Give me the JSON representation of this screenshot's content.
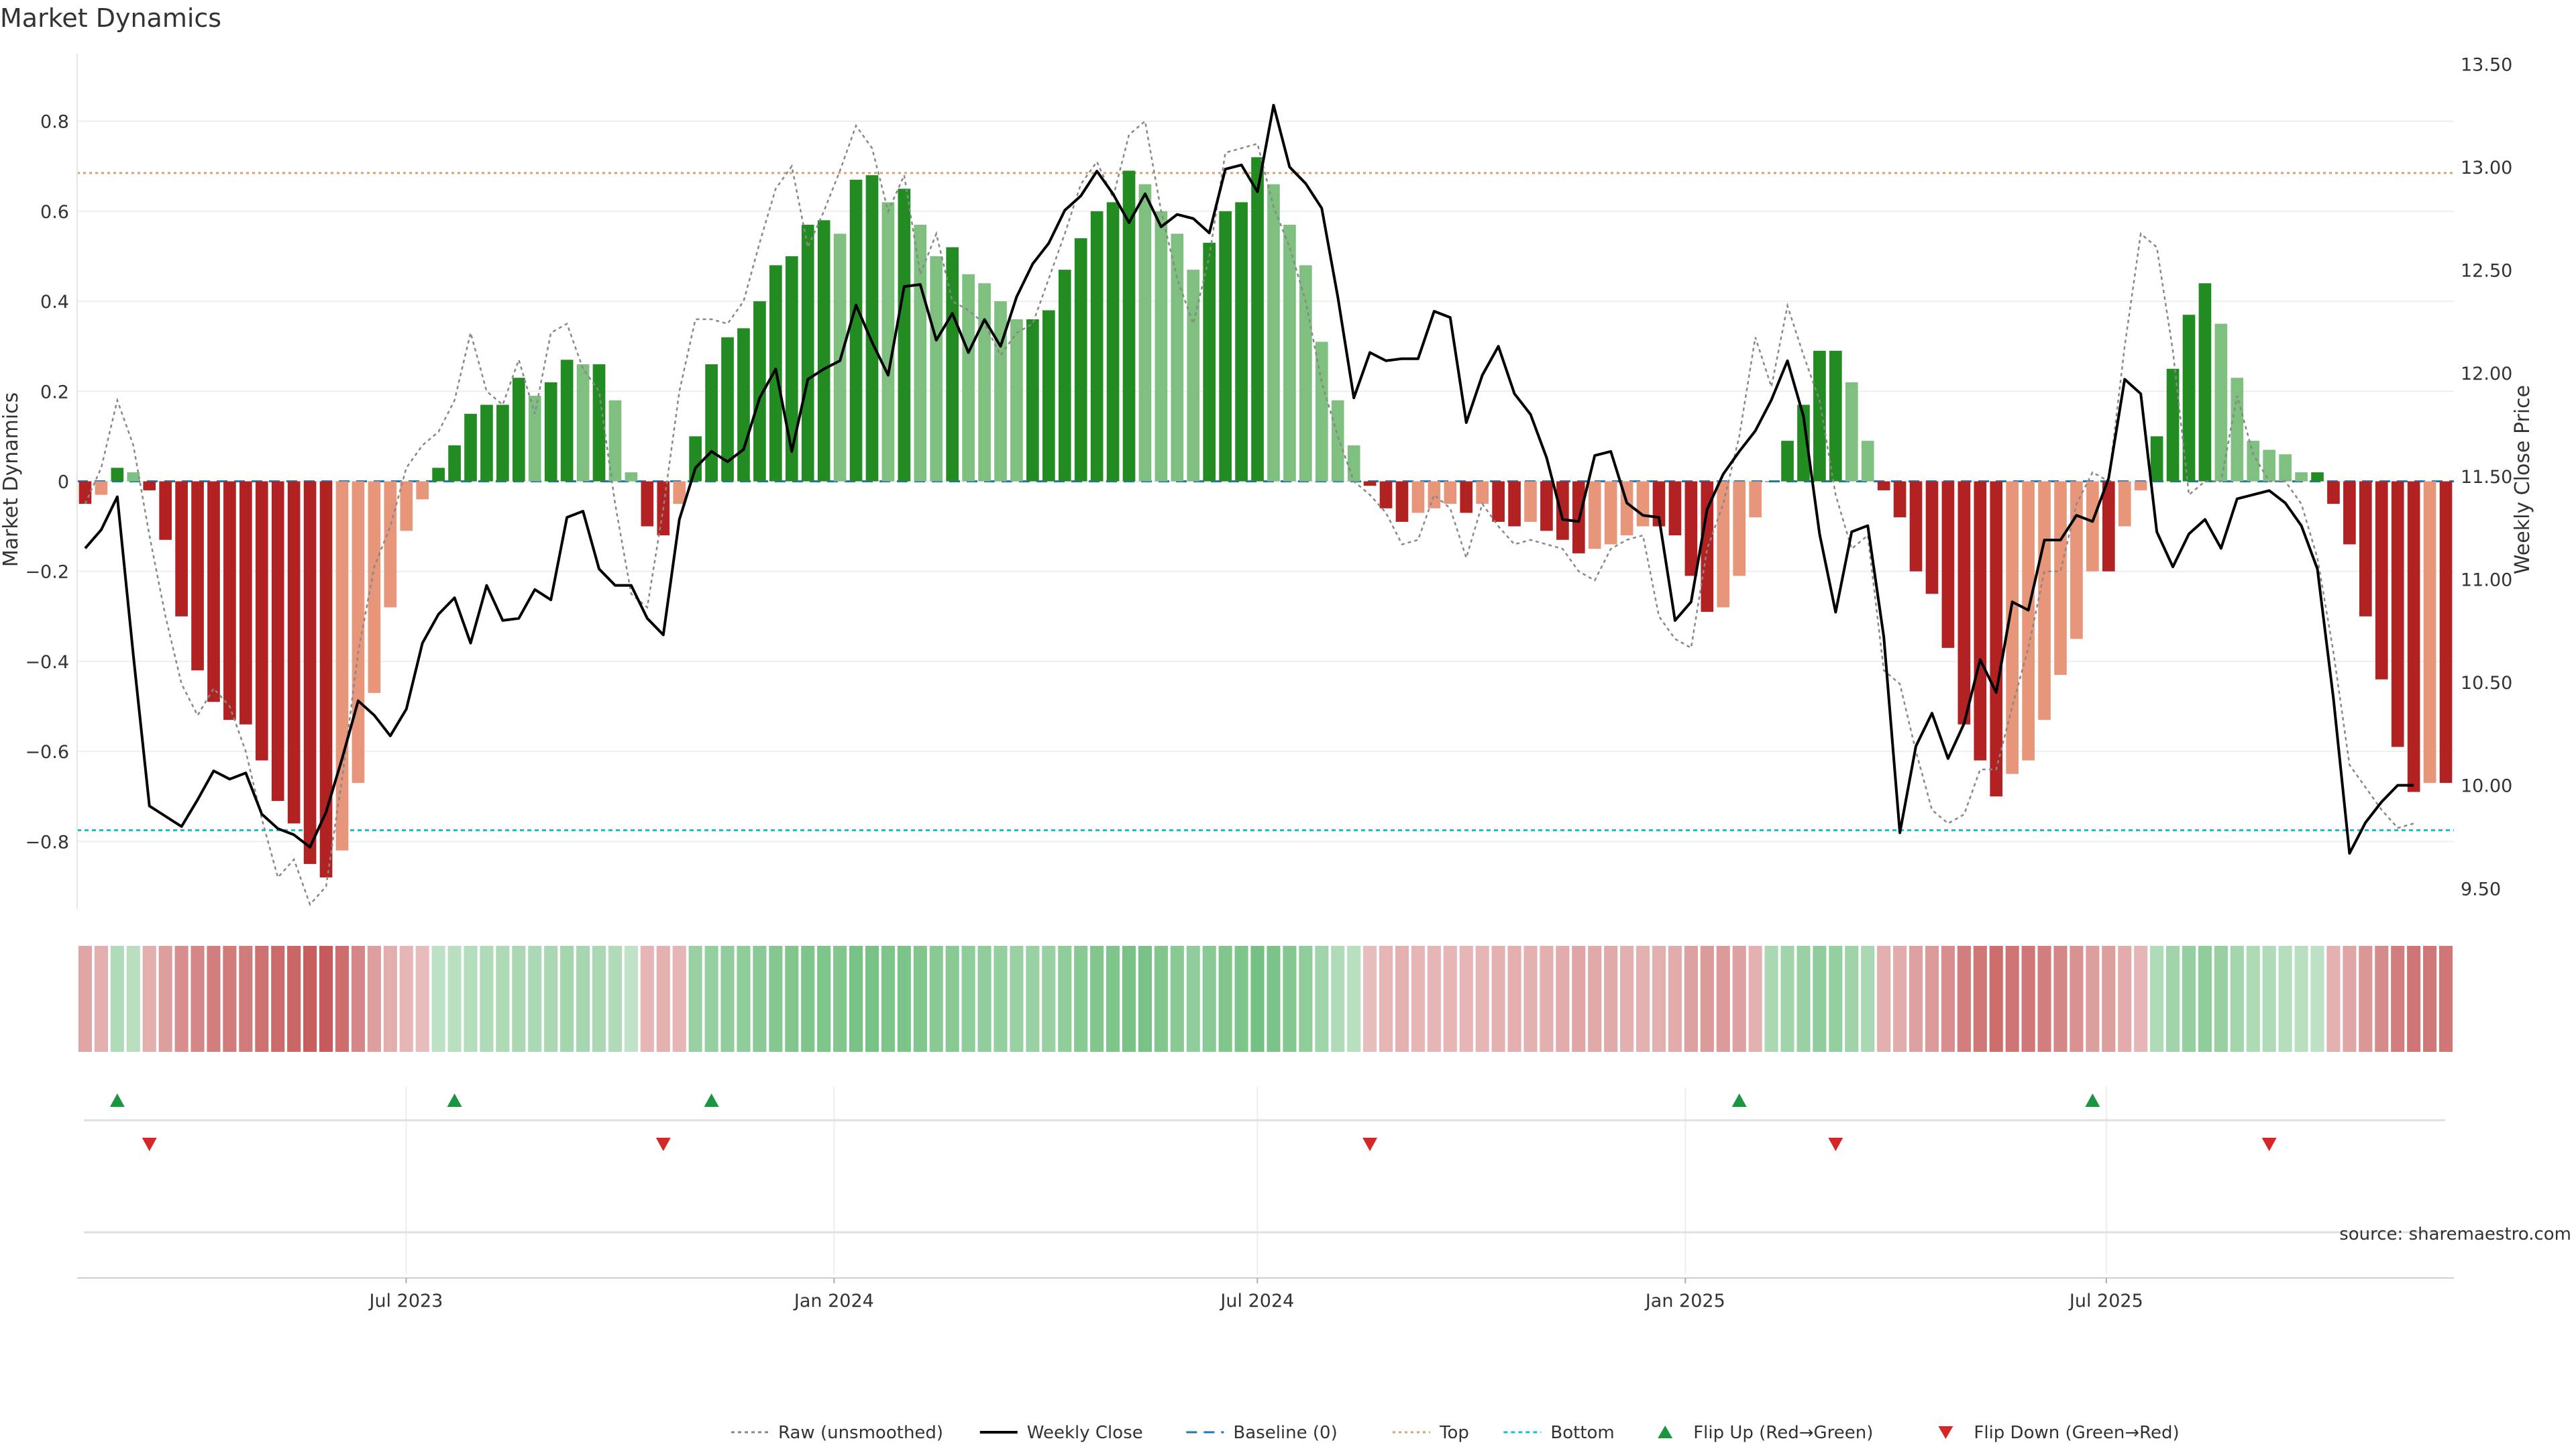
{
  "chart_data": {
    "type": "bar",
    "title": "Market Dynamics",
    "ylabel": "Market Dynamics",
    "y2label": "Weekly Close Price",
    "source": "source: sharemaestro.com",
    "ylim": [
      -0.95,
      0.95
    ],
    "y2lim": [
      9.4,
      13.55
    ],
    "yticks": [
      "0.8",
      "0.6",
      "0.4",
      "0.2",
      "0",
      "−0.2",
      "−0.4",
      "−0.6",
      "−0.8"
    ],
    "yticks_values": [
      0.8,
      0.6,
      0.4,
      0.2,
      0,
      -0.2,
      -0.4,
      -0.6,
      -0.8
    ],
    "y2ticks": [
      "13.50",
      "13.00",
      "12.50",
      "12.00",
      "11.50",
      "11.00",
      "10.50",
      "10.00",
      "9.50"
    ],
    "y2ticks_values": [
      13.5,
      13.0,
      12.5,
      12.0,
      11.5,
      11.0,
      10.5,
      10.0,
      9.5
    ],
    "x_start": "2023-02-13",
    "x_end": "2025-11-24",
    "xticks": [
      {
        "label": "Jul 2023",
        "date": "2023-07-01"
      },
      {
        "label": "Jan 2024",
        "date": "2024-01-01"
      },
      {
        "label": "Jul 2024",
        "date": "2024-07-01"
      },
      {
        "label": "Jan 2025",
        "date": "2025-01-01"
      },
      {
        "label": "Jul 2025",
        "date": "2025-07-01"
      }
    ],
    "top_level": 0.685,
    "bottom_level": -0.775,
    "colors": {
      "up_strong": "#228b22",
      "up_weak": "#7fbf7f",
      "down_strong": "#b22222",
      "down_weak": "#e8967a",
      "close": "#000000",
      "raw": "#888888",
      "baseline": "#1f77b4",
      "top": "#d4a373",
      "bottom": "#17becf",
      "flip_up": "#1a9641",
      "flip_down": "#d62728"
    },
    "series": [
      {
        "name": "Market Dynamics",
        "values": [
          -0.05,
          -0.03,
          0.03,
          0.02,
          -0.02,
          -0.13,
          -0.3,
          -0.42,
          -0.49,
          -0.53,
          -0.54,
          -0.62,
          -0.71,
          -0.76,
          -0.85,
          -0.88,
          -0.82,
          -0.67,
          -0.47,
          -0.28,
          -0.11,
          -0.04,
          0.03,
          0.08,
          0.15,
          0.17,
          0.17,
          0.23,
          0.19,
          0.22,
          0.27,
          0.26,
          0.26,
          0.18,
          0.02,
          -0.1,
          -0.12,
          -0.05,
          0.1,
          0.26,
          0.32,
          0.34,
          0.4,
          0.48,
          0.5,
          0.57,
          0.58,
          0.55,
          0.67,
          0.68,
          0.62,
          0.65,
          0.57,
          0.5,
          0.52,
          0.46,
          0.44,
          0.4,
          0.36,
          0.36,
          0.38,
          0.47,
          0.54,
          0.6,
          0.62,
          0.69,
          0.66,
          0.6,
          0.55,
          0.47,
          0.53,
          0.6,
          0.62,
          0.72,
          0.66,
          0.57,
          0.48,
          0.31,
          0.18,
          0.08,
          -0.01,
          -0.06,
          -0.09,
          -0.07,
          -0.06,
          -0.05,
          -0.07,
          -0.05,
          -0.09,
          -0.1,
          -0.09,
          -0.11,
          -0.13,
          -0.16,
          -0.15,
          -0.14,
          -0.12,
          -0.1,
          -0.1,
          -0.12,
          -0.21,
          -0.29,
          -0.28,
          -0.21,
          -0.08,
          0.0,
          0.09,
          0.17,
          0.29,
          0.29,
          0.22,
          0.09,
          -0.02,
          -0.08,
          -0.2,
          -0.25,
          -0.37,
          -0.54,
          -0.62,
          -0.7,
          -0.65,
          -0.62,
          -0.53,
          -0.43,
          -0.35,
          -0.2,
          -0.2,
          -0.1,
          -0.02,
          0.1,
          0.25,
          0.37,
          0.44,
          0.35,
          0.23,
          0.09,
          0.07,
          0.06,
          0.02,
          0.02,
          -0.05,
          -0.14,
          -0.3,
          -0.44,
          -0.59,
          -0.69,
          -0.67,
          -0.67
        ]
      },
      {
        "name": "Raw (unsmoothed)",
        "values": [
          -0.05,
          0.03,
          0.18,
          0.08,
          -0.12,
          -0.3,
          -0.45,
          -0.52,
          -0.46,
          -0.5,
          -0.6,
          -0.75,
          -0.88,
          -0.84,
          -0.94,
          -0.9,
          -0.66,
          -0.38,
          -0.19,
          -0.1,
          0.03,
          0.08,
          0.11,
          0.18,
          0.33,
          0.2,
          0.17,
          0.27,
          0.15,
          0.33,
          0.35,
          0.25,
          0.2,
          -0.05,
          -0.25,
          -0.28,
          -0.06,
          0.2,
          0.36,
          0.36,
          0.35,
          0.4,
          0.53,
          0.65,
          0.7,
          0.52,
          0.6,
          0.69,
          0.79,
          0.74,
          0.6,
          0.68,
          0.46,
          0.55,
          0.4,
          0.38,
          0.35,
          0.28,
          0.33,
          0.35,
          0.45,
          0.55,
          0.66,
          0.71,
          0.63,
          0.77,
          0.8,
          0.6,
          0.45,
          0.35,
          0.5,
          0.73,
          0.74,
          0.75,
          0.61,
          0.52,
          0.4,
          0.22,
          0.1,
          0.0,
          -0.03,
          -0.07,
          -0.14,
          -0.13,
          -0.03,
          -0.06,
          -0.17,
          -0.05,
          -0.1,
          -0.14,
          -0.13,
          -0.14,
          -0.15,
          -0.2,
          -0.22,
          -0.15,
          -0.13,
          -0.12,
          -0.3,
          -0.35,
          -0.37,
          -0.15,
          -0.05,
          0.1,
          0.32,
          0.21,
          0.39,
          0.28,
          0.18,
          -0.03,
          -0.15,
          -0.12,
          -0.42,
          -0.45,
          -0.6,
          -0.73,
          -0.76,
          -0.74,
          -0.64,
          -0.64,
          -0.5,
          -0.37,
          -0.2,
          -0.2,
          -0.05,
          0.02,
          0.0,
          0.3,
          0.55,
          0.52,
          0.29,
          -0.03,
          0.0,
          0.0,
          0.19,
          0.06,
          0.0,
          0.0,
          -0.05,
          -0.17,
          -0.38,
          -0.63,
          -0.68,
          -0.73,
          -0.77,
          -0.76
        ]
      },
      {
        "name": "Weekly Close",
        "values": [
          11.15,
          11.24,
          11.4,
          10.63,
          9.9,
          9.85,
          9.8,
          9.93,
          10.07,
          10.03,
          10.06,
          9.86,
          9.79,
          9.76,
          9.7,
          9.87,
          10.13,
          10.41,
          10.34,
          10.24,
          10.37,
          10.69,
          10.83,
          10.91,
          10.69,
          10.97,
          10.8,
          10.81,
          10.95,
          10.9,
          11.3,
          11.33,
          11.05,
          10.97,
          10.97,
          10.81,
          10.73,
          11.29,
          11.54,
          11.62,
          11.57,
          11.63,
          11.88,
          12.02,
          11.62,
          11.97,
          12.02,
          12.06,
          12.33,
          12.15,
          11.99,
          12.42,
          12.43,
          12.16,
          12.29,
          12.1,
          12.26,
          12.13,
          12.37,
          12.53,
          12.63,
          12.79,
          12.86,
          12.98,
          12.87,
          12.73,
          12.87,
          12.71,
          12.77,
          12.75,
          12.68,
          12.99,
          13.01,
          12.88,
          13.3,
          13.0,
          12.92,
          12.8,
          12.37,
          11.88,
          12.1,
          12.06,
          12.07,
          12.07,
          12.3,
          12.27,
          11.76,
          11.99,
          12.13,
          11.9,
          11.8,
          11.59,
          11.29,
          11.28,
          11.6,
          11.62,
          11.37,
          11.31,
          11.3,
          10.8,
          10.89,
          11.34,
          11.51,
          11.62,
          11.72,
          11.87,
          12.06,
          11.79,
          11.22,
          10.84,
          11.23,
          11.26,
          10.72,
          9.77,
          10.19,
          10.35,
          10.13,
          10.3,
          10.61,
          10.45,
          10.89,
          10.85,
          11.19,
          11.19,
          11.31,
          11.28,
          11.49,
          11.97,
          11.9,
          11.23,
          11.06,
          11.22,
          11.29,
          11.15,
          11.39,
          11.41,
          11.43,
          11.37,
          11.26,
          11.05,
          10.42,
          9.67,
          9.82,
          9.92,
          10.0,
          10.0
        ]
      }
    ],
    "heat_strip": [
      -0.35,
      -0.3,
      0.3,
      0.25,
      -0.3,
      -0.4,
      -0.5,
      -0.55,
      -0.6,
      -0.62,
      -0.62,
      -0.68,
      -0.72,
      -0.75,
      -0.8,
      -0.82,
      -0.7,
      -0.55,
      -0.4,
      -0.3,
      -0.25,
      -0.22,
      0.22,
      0.25,
      0.28,
      0.3,
      0.32,
      0.35,
      0.33,
      0.35,
      0.38,
      0.36,
      0.35,
      0.3,
      0.2,
      -0.25,
      -0.28,
      -0.25,
      0.45,
      0.48,
      0.5,
      0.52,
      0.55,
      0.58,
      0.6,
      0.62,
      0.62,
      0.6,
      0.65,
      0.66,
      0.62,
      0.64,
      0.6,
      0.55,
      0.56,
      0.52,
      0.5,
      0.48,
      0.45,
      0.45,
      0.46,
      0.52,
      0.56,
      0.6,
      0.62,
      0.66,
      0.65,
      0.6,
      0.56,
      0.5,
      0.55,
      0.6,
      0.62,
      0.68,
      0.64,
      0.58,
      0.52,
      0.4,
      0.3,
      0.25,
      -0.22,
      -0.25,
      -0.28,
      -0.25,
      -0.25,
      -0.25,
      -0.26,
      -0.25,
      -0.28,
      -0.3,
      -0.28,
      -0.3,
      -0.32,
      -0.35,
      -0.34,
      -0.33,
      -0.3,
      -0.28,
      -0.3,
      -0.32,
      -0.38,
      -0.42,
      -0.42,
      -0.38,
      -0.28,
      0.35,
      0.4,
      0.45,
      0.5,
      0.48,
      0.42,
      0.35,
      -0.3,
      -0.32,
      -0.38,
      -0.42,
      -0.5,
      -0.6,
      -0.64,
      -0.7,
      -0.66,
      -0.64,
      -0.6,
      -0.54,
      -0.48,
      -0.4,
      -0.4,
      -0.32,
      -0.26,
      0.3,
      0.4,
      0.48,
      0.52,
      0.46,
      0.38,
      0.32,
      0.3,
      0.28,
      0.25,
      0.22,
      -0.28,
      -0.35,
      -0.45,
      -0.52,
      -0.6,
      -0.66,
      -0.65,
      -0.65
    ],
    "flip_up_indices": [
      2,
      23,
      39,
      103,
      125
    ],
    "flip_down_indices": [
      4,
      36,
      80,
      109,
      136
    ],
    "legend": [
      {
        "label": "Raw (unsmoothed)",
        "style": "raw"
      },
      {
        "label": "Weekly Close",
        "style": "close"
      },
      {
        "label": "Baseline (0)",
        "style": "baseline"
      },
      {
        "label": "Top",
        "style": "top"
      },
      {
        "label": "Bottom",
        "style": "bottom"
      },
      {
        "label": "Flip Up (Red→Green)",
        "style": "flip_up"
      },
      {
        "label": "Flip Down (Green→Red)",
        "style": "flip_down"
      }
    ]
  }
}
